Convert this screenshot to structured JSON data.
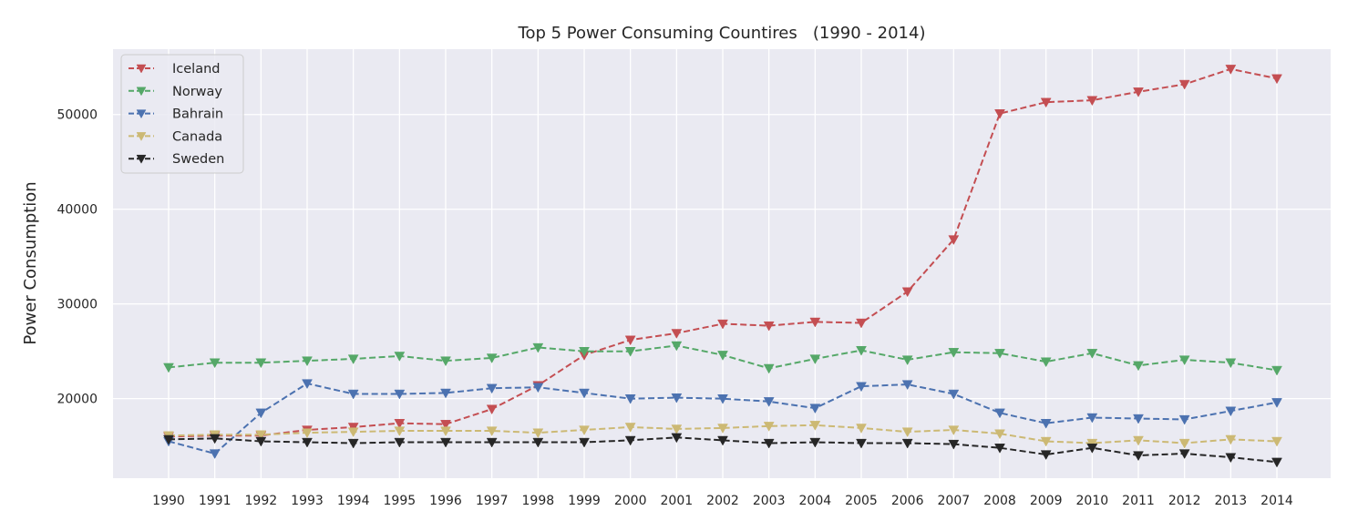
{
  "chart_data": {
    "type": "line",
    "title": "Top 5 Power Consuming Countires   (1990 - 2014)",
    "xlabel": "",
    "ylabel": "Power Consumption",
    "x": [
      "1990",
      "1991",
      "1992",
      "1993",
      "1994",
      "1995",
      "1996",
      "1997",
      "1998",
      "1999",
      "2000",
      "2001",
      "2002",
      "2003",
      "2004",
      "2005",
      "2006",
      "2007",
      "2008",
      "2009",
      "2010",
      "2011",
      "2012",
      "2013",
      "2014"
    ],
    "ylim": [
      11600,
      56900
    ],
    "yticks": [
      20000,
      30000,
      40000,
      50000
    ],
    "grid": true,
    "legend": "top-left",
    "marker": "triangle-down",
    "line_style": "dashed",
    "series": [
      {
        "name": "Iceland",
        "color": "#c44e52",
        "values": [
          16000,
          16100,
          16100,
          16700,
          17000,
          17400,
          17300,
          18900,
          21400,
          24600,
          26200,
          26900,
          27900,
          27700,
          28100,
          28000,
          31300,
          36800,
          50100,
          51300,
          51500,
          52400,
          53200,
          54800,
          53800
        ]
      },
      {
        "name": "Norway",
        "color": "#55a868",
        "values": [
          23300,
          23800,
          23800,
          24000,
          24200,
          24500,
          24000,
          24300,
          25400,
          25000,
          25000,
          25600,
          24600,
          23200,
          24200,
          25100,
          24100,
          24900,
          24800,
          23900,
          24800,
          23500,
          24100,
          23800,
          23000
        ]
      },
      {
        "name": "Bahrain",
        "color": "#4c72b0",
        "values": [
          15500,
          14200,
          18500,
          21600,
          20500,
          20500,
          20600,
          21100,
          21200,
          20600,
          20000,
          20100,
          20000,
          19700,
          19000,
          21300,
          21500,
          20500,
          18500,
          17400,
          18000,
          17900,
          17800,
          18700,
          19600
        ]
      },
      {
        "name": "Canada",
        "color": "#ccb974",
        "values": [
          16100,
          16200,
          16200,
          16400,
          16500,
          16600,
          16600,
          16600,
          16400,
          16700,
          17000,
          16800,
          16900,
          17100,
          17200,
          16900,
          16500,
          16700,
          16300,
          15500,
          15300,
          15600,
          15300,
          15700,
          15500
        ]
      },
      {
        "name": "Sweden",
        "color": "#262626",
        "values": [
          15700,
          15800,
          15500,
          15400,
          15300,
          15400,
          15400,
          15400,
          15400,
          15400,
          15600,
          15900,
          15600,
          15300,
          15400,
          15300,
          15300,
          15200,
          14800,
          14100,
          14800,
          14000,
          14200,
          13800,
          13300
        ]
      }
    ]
  }
}
